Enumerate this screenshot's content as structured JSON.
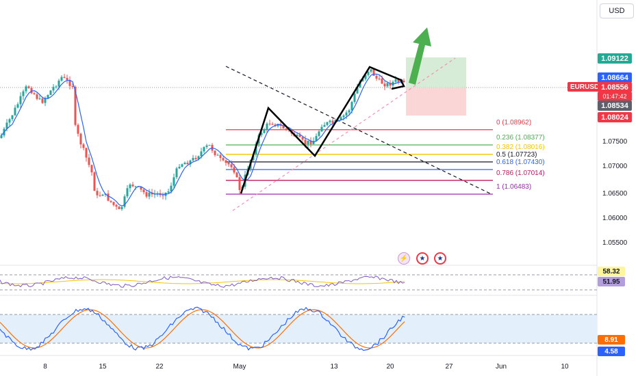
{
  "currency": "USD",
  "ticker": "EURUSD",
  "countdown": "01:47:42",
  "price_tags": [
    {
      "value": "1.09122",
      "color": "#22ab94",
      "text_color": "#ffffff"
    },
    {
      "value": "1.08664",
      "color": "#2962ff",
      "text_color": "#ffffff"
    },
    {
      "value": "1.08556",
      "color": "#f23645",
      "text_color": "#ffffff"
    },
    {
      "value": "1.08534",
      "color": "#5d606b",
      "text_color": "#ffffff"
    },
    {
      "value": "1.08024",
      "color": "#f23645",
      "text_color": "#ffffff"
    }
  ],
  "price_axis": [
    "1.07500",
    "1.07000",
    "1.06500",
    "1.06000",
    "1.05500"
  ],
  "time_axis": [
    "8",
    "15",
    "22",
    "May",
    "13",
    "20",
    "27",
    "Jun",
    "10"
  ],
  "fib_levels": [
    {
      "label": "0 (1.08962)",
      "price": 1.08962,
      "color": "#f23645"
    },
    {
      "label": "0.236 (1.08377)",
      "price": 1.08377,
      "color": "#4caf50"
    },
    {
      "label": "0.382 (1.08016)",
      "price": 1.08016,
      "color": "#f5c400"
    },
    {
      "label": "0.5 (1.07723)",
      "price": 1.07723,
      "color": "#131722"
    },
    {
      "label": "0.618 (1.07430)",
      "price": 1.0743,
      "color": "#2962ff"
    },
    {
      "label": "0.786 (1.07014)",
      "price": 1.07014,
      "color": "#c2185b"
    },
    {
      "label": "1 (1.06483)",
      "price": 1.06483,
      "color": "#9c27b0"
    }
  ],
  "rsi": {
    "values": [
      "58.32",
      "51.95"
    ],
    "colors": [
      "#f5c400",
      "#7e57c2"
    ]
  },
  "stoch": {
    "values": [
      "8.91",
      "4.58"
    ],
    "colors": [
      "#ff6d00",
      "#2962ff"
    ]
  },
  "colors": {
    "bull": "#26a69a",
    "bear": "#ef5350",
    "ma": "#2962ff"
  }
}
